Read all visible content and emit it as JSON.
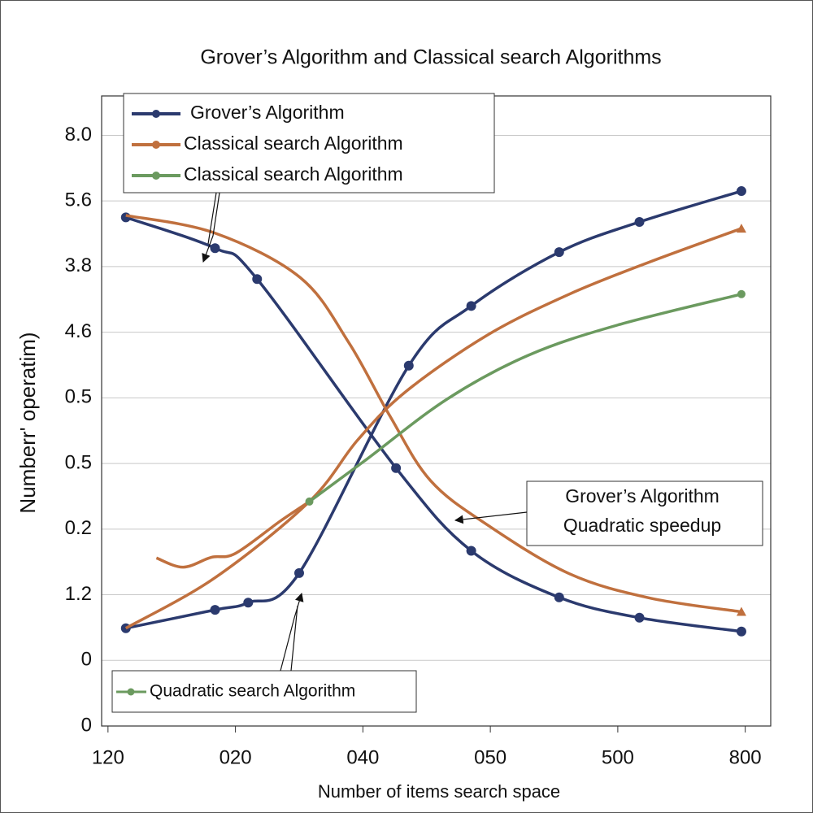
{
  "chart_data": {
    "type": "line",
    "title": "Grover’s Algorithm and Classical search Algorithms",
    "x_label": "Number of items search space",
    "y_label": "Numberr' operatim)",
    "xlim": [
      -0.05,
      5.2
    ],
    "ylim": [
      0,
      9.6
    ],
    "xticks": [
      {
        "value": 0,
        "label": "120"
      },
      {
        "value": 1,
        "label": "020"
      },
      {
        "value": 2,
        "label": "040"
      },
      {
        "value": 3,
        "label": "050"
      },
      {
        "value": 4,
        "label": "500"
      },
      {
        "value": 5,
        "label": "800"
      }
    ],
    "yticks": [
      {
        "value": 0,
        "label": "0"
      },
      {
        "value": 1,
        "label": "0"
      },
      {
        "value": 2,
        "label": "1.2"
      },
      {
        "value": 3,
        "label": "0.2"
      },
      {
        "value": 4,
        "label": "0.5"
      },
      {
        "value": 5,
        "label": "0.5"
      },
      {
        "value": 6,
        "label": "4.6"
      },
      {
        "value": 7,
        "label": "3.8"
      },
      {
        "value": 8,
        "label": "5.6"
      },
      {
        "value": 9,
        "label": "8.0"
      }
    ],
    "grid": true,
    "series": [
      {
        "color": "#2b3a6e",
        "marker": "circle",
        "x": [
          0.14,
          0.84,
          1.17,
          2.26,
          2.85,
          3.54,
          4.17,
          4.97
        ],
        "values": [
          7.75,
          7.28,
          6.81,
          3.93,
          2.67,
          1.96,
          1.65,
          1.44
        ]
      },
      {
        "color": "#2b3a6e",
        "marker": "circle",
        "x": [
          0.14,
          0.84,
          1.1,
          1.5,
          2.36,
          2.85,
          3.54,
          4.17,
          4.97
        ],
        "values": [
          1.49,
          1.77,
          1.88,
          2.33,
          5.49,
          6.4,
          7.22,
          7.68,
          8.15
        ]
      },
      {
        "color": "#c0703e",
        "marker": "triangle-end",
        "x": [
          0.14,
          0.84,
          1.51,
          1.89,
          2.21,
          2.53,
          2.98,
          3.62,
          4.25,
          4.97
        ],
        "values": [
          7.78,
          7.51,
          6.83,
          5.84,
          4.73,
          3.74,
          3.06,
          2.32,
          1.95,
          1.74
        ]
      },
      {
        "color": "#c0703e",
        "marker": "triangle-end",
        "x": [
          0.14,
          0.84,
          1.58,
          1.96,
          2.34,
          2.98,
          3.62,
          4.25,
          4.97
        ],
        "values": [
          1.49,
          2.26,
          3.42,
          4.36,
          5.1,
          5.96,
          6.58,
          7.07,
          7.58
        ]
      },
      {
        "color": "#c0703e",
        "marker": "none",
        "x": [
          0.38,
          0.59,
          0.81,
          1.0,
          1.35,
          1.58
        ],
        "values": [
          2.56,
          2.42,
          2.57,
          2.63,
          3.12,
          3.42
        ]
      },
      {
        "color": "#6b9a5f",
        "marker": "circle-ends",
        "x": [
          1.58,
          2.02,
          2.66,
          3.3,
          4.0,
          4.97
        ],
        "values": [
          3.42,
          4.05,
          4.98,
          5.65,
          6.11,
          6.58
        ]
      }
    ],
    "legend": [
      {
        "label": "Grover’s Algorithm",
        "color": "#2b3a6e"
      },
      {
        "label": "Classical search Algorithm",
        "color": "#c0703e"
      },
      {
        "label": "Classical search Algorithm",
        "color": "#6b9a5f"
      }
    ],
    "legend_bottom": [
      {
        "label": "Quadratic search Algorithm",
        "color": "#6b9a5f"
      }
    ],
    "annotation": [
      "Grover’s Algorithm",
      "Quadratic speedup"
    ]
  }
}
